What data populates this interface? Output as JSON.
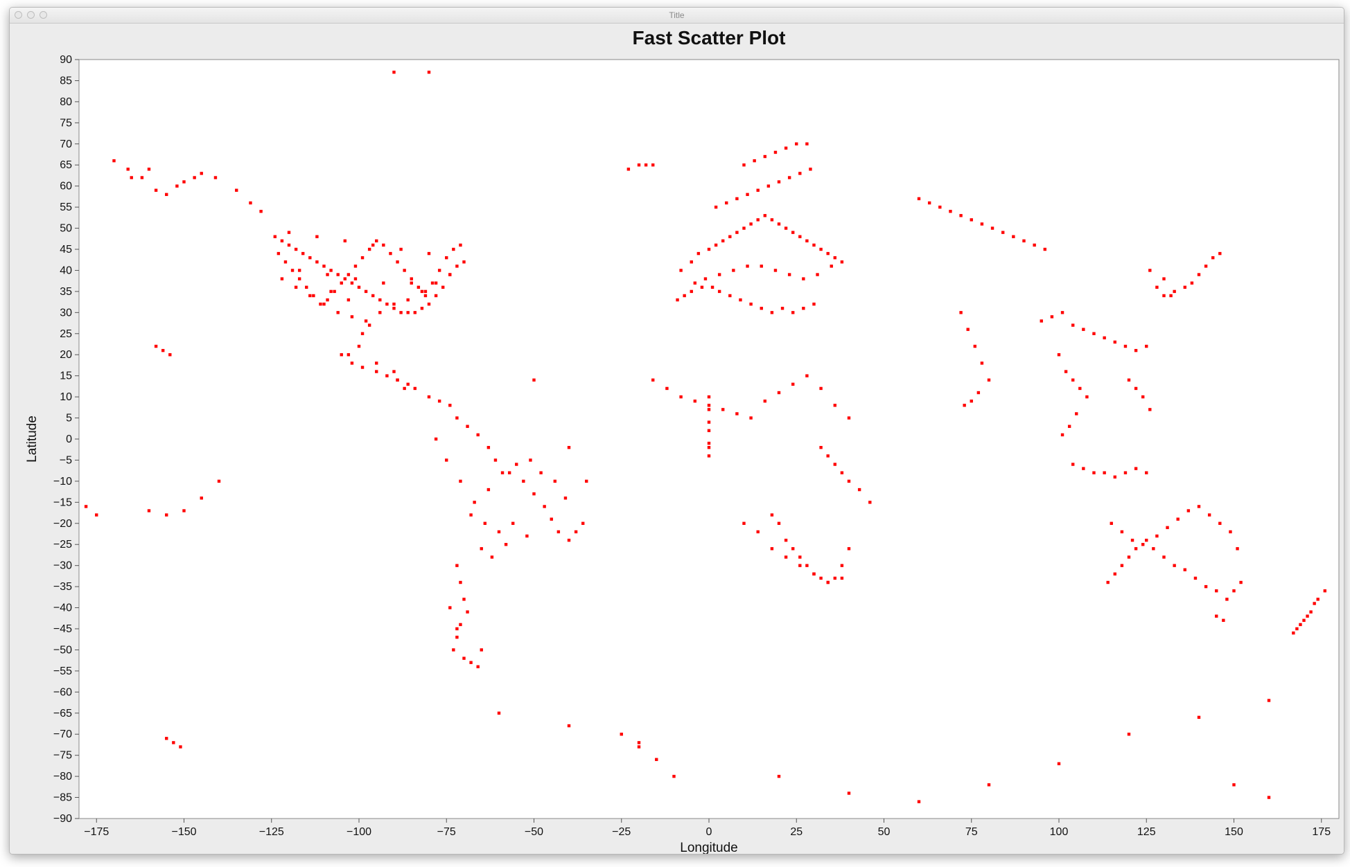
{
  "window": {
    "title": "Title"
  },
  "chart_data": {
    "type": "scatter",
    "title": "Fast Scatter Plot",
    "xlabel": "Longitude",
    "ylabel": "Latitude",
    "xlim": [
      -180,
      180
    ],
    "ylim": [
      -90,
      90
    ],
    "x_ticks": [
      -175,
      -150,
      -125,
      -100,
      -75,
      -50,
      -25,
      0,
      25,
      50,
      75,
      100,
      125,
      150,
      175
    ],
    "y_ticks": [
      90,
      85,
      80,
      75,
      70,
      65,
      60,
      55,
      50,
      45,
      40,
      35,
      30,
      25,
      20,
      15,
      10,
      5,
      0,
      -5,
      -10,
      -15,
      -20,
      -25,
      -30,
      -35,
      -40,
      -45,
      -50,
      -55,
      -60,
      -65,
      -70,
      -75,
      -80,
      -85,
      -90
    ],
    "grid": false,
    "marker_color": "#ff0000",
    "series": [
      {
        "x": [
          -124,
          -122,
          -120,
          -118,
          -116,
          -114,
          -112,
          -110,
          -108,
          -106,
          -104,
          -102,
          -100,
          -98,
          -96,
          -94,
          -92,
          -90,
          -88,
          -86,
          -84,
          -82,
          -80,
          -78,
          -76,
          -74,
          -72,
          -70,
          -123,
          -121,
          -119,
          -117,
          -115,
          -113,
          -111,
          -109,
          -107,
          -105,
          -103,
          -101,
          -99,
          -97,
          -95,
          -93,
          -91,
          -89,
          -87,
          -85,
          -83,
          -81,
          -79,
          -77,
          -75,
          -73,
          -71,
          -122,
          -118,
          -114,
          -110,
          -106,
          -102,
          -98,
          -94,
          -90,
          -86,
          -82,
          -78,
          -74,
          -120,
          -112,
          -104,
          -96,
          -88,
          -80,
          -117,
          -109,
          -101,
          -93,
          -85,
          -81,
          -97,
          -99,
          -103,
          -100,
          -95,
          -90,
          -89,
          -87,
          -150,
          -147,
          -145,
          -141,
          -135,
          -131,
          -128,
          -158,
          -155,
          -152,
          -165,
          -160,
          -105,
          -102,
          -99,
          -95,
          -92,
          -89,
          -86,
          -84,
          -80,
          -77,
          -74,
          -72,
          -69,
          -66,
          -63,
          -61,
          -57,
          -53,
          -50,
          -47,
          -45,
          -43,
          -40,
          -38,
          -36,
          -35,
          -78,
          -75,
          -71,
          -67,
          -63,
          -59,
          -55,
          -51,
          -48,
          -44,
          -41,
          -68,
          -64,
          -60,
          -56,
          -52,
          -58,
          -62,
          -65,
          -72,
          -71,
          -70,
          -69,
          -71,
          -72,
          -73,
          -70,
          -68,
          -66,
          -65,
          -72,
          -74,
          -8,
          -5,
          -3,
          0,
          2,
          4,
          6,
          8,
          10,
          12,
          14,
          16,
          18,
          20,
          22,
          24,
          26,
          28,
          30,
          32,
          34,
          36,
          38,
          -4,
          -1,
          3,
          7,
          11,
          15,
          19,
          23,
          27,
          31,
          35,
          2,
          5,
          8,
          11,
          14,
          17,
          20,
          23,
          26,
          29,
          10,
          13,
          16,
          19,
          22,
          25,
          28,
          -9,
          -7,
          -5,
          -2,
          1,
          3,
          6,
          9,
          12,
          15,
          18,
          21,
          24,
          27,
          30,
          0,
          0,
          0,
          0,
          0,
          0,
          0,
          -16,
          -12,
          -8,
          -4,
          0,
          4,
          8,
          12,
          16,
          20,
          24,
          28,
          32,
          36,
          40,
          10,
          14,
          18,
          22,
          26,
          30,
          34,
          38,
          18,
          20,
          22,
          24,
          26,
          28,
          30,
          32,
          34,
          36,
          38,
          40,
          32,
          34,
          36,
          38,
          40,
          43,
          46,
          -23,
          -20,
          -18,
          -16,
          -50,
          -40,
          60,
          63,
          66,
          69,
          72,
          75,
          78,
          81,
          84,
          87,
          90,
          93,
          96,
          72,
          74,
          76,
          78,
          80,
          77,
          75,
          73,
          95,
          98,
          101,
          104,
          107,
          110,
          113,
          116,
          119,
          122,
          125,
          100,
          102,
          104,
          106,
          108,
          105,
          103,
          101,
          104,
          107,
          110,
          113,
          116,
          119,
          122,
          125,
          120,
          122,
          124,
          126,
          130,
          133,
          136,
          138,
          140,
          142,
          144,
          146,
          128,
          130,
          132,
          126,
          115,
          118,
          121,
          124,
          127,
          130,
          133,
          136,
          139,
          142,
          145,
          148,
          150,
          152,
          114,
          116,
          118,
          120,
          122,
          125,
          128,
          131,
          134,
          137,
          140,
          143,
          146,
          149,
          151,
          145,
          147,
          168,
          170,
          172,
          174,
          176,
          173,
          171,
          169,
          167,
          -158,
          -156,
          -154,
          -178,
          -175,
          -140,
          -145,
          -150,
          -155,
          -160,
          -155,
          -153,
          -151,
          -170,
          -166,
          -162,
          -108,
          -103,
          -25,
          -20,
          -15,
          -10,
          150,
          160,
          -90,
          -80,
          -60,
          -40,
          -20,
          20,
          40,
          60,
          80,
          100,
          120,
          140,
          160
        ],
        "y": [
          48,
          47,
          46,
          45,
          44,
          43,
          42,
          41,
          40,
          39,
          38,
          37,
          36,
          35,
          34,
          33,
          32,
          31,
          30,
          30,
          30,
          31,
          32,
          34,
          36,
          39,
          41,
          42,
          44,
          42,
          40,
          38,
          36,
          34,
          32,
          33,
          35,
          37,
          39,
          41,
          43,
          45,
          47,
          46,
          44,
          42,
          40,
          38,
          36,
          34,
          37,
          40,
          43,
          45,
          46,
          38,
          36,
          34,
          32,
          30,
          29,
          28,
          30,
          32,
          33,
          35,
          37,
          39,
          49,
          48,
          47,
          46,
          45,
          44,
          40,
          39,
          38,
          37,
          37,
          35,
          27,
          25,
          20,
          22,
          18,
          16,
          14,
          12,
          61,
          62,
          63,
          62,
          59,
          56,
          54,
          59,
          58,
          60,
          62,
          64,
          20,
          18,
          17,
          16,
          15,
          14,
          13,
          12,
          10,
          9,
          8,
          5,
          3,
          1,
          -2,
          -5,
          -8,
          -10,
          -13,
          -16,
          -19,
          -22,
          -24,
          -22,
          -20,
          -10,
          0,
          -5,
          -10,
          -15,
          -12,
          -8,
          -6,
          -5,
          -8,
          -10,
          -14,
          -18,
          -20,
          -22,
          -20,
          -23,
          -25,
          -28,
          -26,
          -30,
          -34,
          -38,
          -41,
          -44,
          -47,
          -50,
          -52,
          -53,
          -54,
          -50,
          -45,
          -40,
          40,
          42,
          44,
          45,
          46,
          47,
          48,
          49,
          50,
          51,
          52,
          53,
          52,
          51,
          50,
          49,
          48,
          47,
          46,
          45,
          44,
          43,
          42,
          37,
          38,
          39,
          40,
          41,
          41,
          40,
          39,
          38,
          39,
          41,
          55,
          56,
          57,
          58,
          59,
          60,
          61,
          62,
          63,
          64,
          65,
          66,
          67,
          68,
          69,
          70,
          70,
          33,
          34,
          35,
          36,
          36,
          35,
          34,
          33,
          32,
          31,
          30,
          31,
          30,
          31,
          32,
          10,
          7,
          4,
          2,
          -1,
          -4,
          -2,
          14,
          12,
          10,
          9,
          8,
          7,
          6,
          5,
          9,
          11,
          13,
          15,
          12,
          8,
          5,
          -20,
          -22,
          -26,
          -28,
          -30,
          -32,
          -34,
          -33,
          -18,
          -20,
          -24,
          -26,
          -28,
          -30,
          -32,
          -33,
          -34,
          -33,
          -30,
          -26,
          -2,
          -4,
          -6,
          -8,
          -10,
          -12,
          -15,
          64,
          65,
          65,
          65,
          14,
          -2,
          57,
          56,
          55,
          54,
          53,
          52,
          51,
          50,
          49,
          48,
          47,
          46,
          45,
          30,
          26,
          22,
          18,
          14,
          11,
          9,
          8,
          28,
          29,
          30,
          27,
          26,
          25,
          24,
          23,
          22,
          21,
          22,
          20,
          16,
          14,
          12,
          10,
          6,
          3,
          1,
          -6,
          -7,
          -8,
          -8,
          -9,
          -8,
          -7,
          -8,
          14,
          12,
          10,
          7,
          34,
          35,
          36,
          37,
          39,
          41,
          43,
          44,
          36,
          38,
          34,
          40,
          -20,
          -22,
          -24,
          -25,
          -26,
          -28,
          -30,
          -31,
          -33,
          -35,
          -36,
          -38,
          -36,
          -34,
          -34,
          -32,
          -30,
          -28,
          -26,
          -24,
          -23,
          -21,
          -19,
          -17,
          -16,
          -18,
          -20,
          -22,
          -26,
          -42,
          -43,
          -45,
          -43,
          -41,
          -38,
          -36,
          -39,
          -42,
          -44,
          -46,
          22,
          21,
          20,
          -16,
          -18,
          -10,
          -14,
          -17,
          -18,
          -17,
          -71,
          -72,
          -73,
          66,
          64,
          62,
          35,
          33,
          -70,
          -73,
          -76,
          -80,
          -82,
          -85,
          87,
          87,
          -65,
          -68,
          -72,
          -80,
          -84,
          -86,
          -82,
          -77,
          -70,
          -66,
          -62
        ]
      }
    ]
  }
}
